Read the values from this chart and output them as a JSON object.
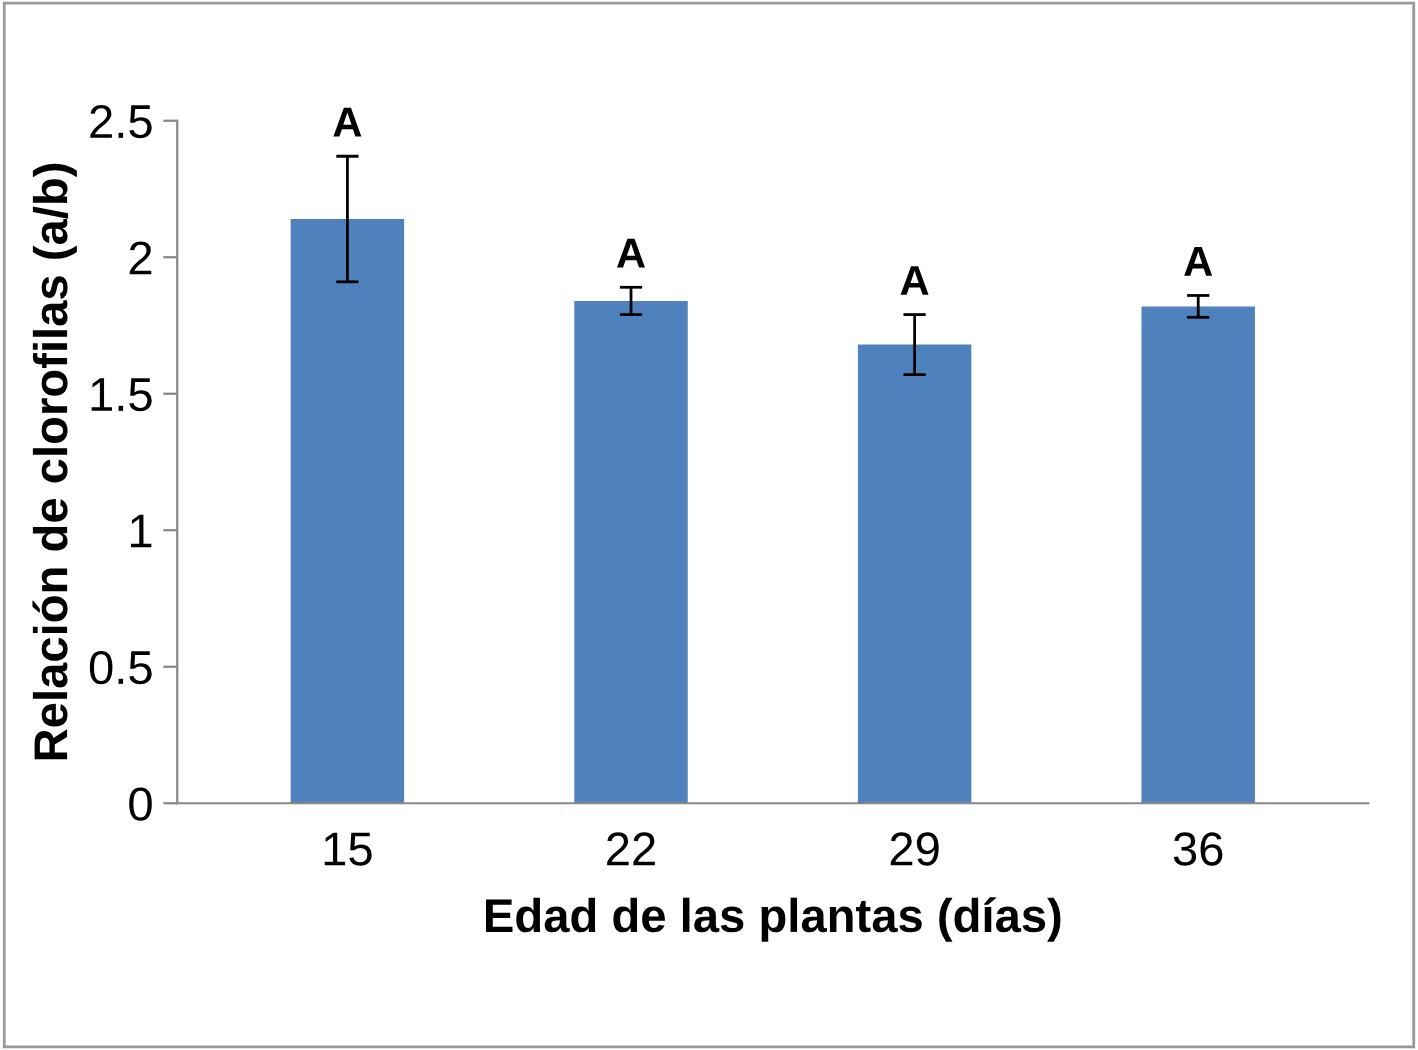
{
  "chart_data": {
    "type": "bar",
    "xlabel": "Edad de las plantas (días)",
    "ylabel": "Relación de clorofilas (a/b)",
    "categories": [
      "15",
      "22",
      "29",
      "36"
    ],
    "values": [
      2.14,
      1.84,
      1.68,
      1.82
    ],
    "errors": [
      0.23,
      0.05,
      0.11,
      0.04
    ],
    "color": "#4f81bd",
    "ylim": [
      0,
      2.5
    ],
    "yticks": [
      0,
      0.5,
      1,
      1.5,
      2,
      2.5
    ],
    "grid": false,
    "legend": false,
    "annotations": [
      {
        "text": "A",
        "x": "15",
        "y": 2.37
      },
      {
        "text": "A",
        "x": "22",
        "y": 1.89
      },
      {
        "text": "A",
        "x": "29",
        "y": 1.79
      },
      {
        "text": "A",
        "x": "36",
        "y": 1.86
      }
    ]
  }
}
